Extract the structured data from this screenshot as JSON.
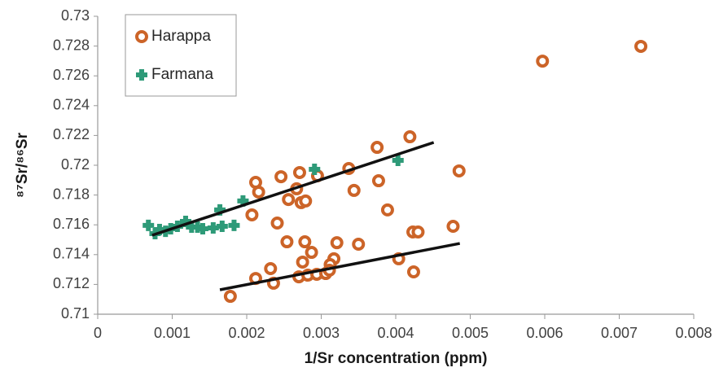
{
  "chart_data": {
    "type": "scatter",
    "x_label": "1/Sr concentration (ppm)",
    "y_label": "⁸⁷Sr/⁸⁶Sr",
    "xlim": [
      0,
      0.008
    ],
    "xticks": [
      0,
      0.001,
      0.002,
      0.003,
      0.004,
      0.005,
      0.006,
      0.007,
      0.008
    ],
    "ylim": [
      0.71,
      0.73
    ],
    "yticks": [
      0.71,
      0.712,
      0.714,
      0.716,
      0.718,
      0.72,
      0.722,
      0.724,
      0.726,
      0.728,
      0.73
    ],
    "grid": false,
    "legend": "top-left",
    "series": [
      {
        "name": "Harappa",
        "color": "#cc6428",
        "marker": "ring",
        "x": [
          0.00729,
          0.00597,
          0.00419,
          0.00375,
          0.00485,
          0.00337,
          0.00377,
          0.00344,
          0.00212,
          0.00246,
          0.00271,
          0.00295,
          0.00216,
          0.00256,
          0.00267,
          0.00273,
          0.00279,
          0.00207,
          0.00389,
          0.00241,
          0.00477,
          0.00423,
          0.0043,
          0.00254,
          0.00278,
          0.00321,
          0.0035,
          0.00287,
          0.00275,
          0.00317,
          0.00312,
          0.00404,
          0.00232,
          0.00212,
          0.00236,
          0.0027,
          0.00282,
          0.00294,
          0.00306,
          0.00311,
          0.00424,
          0.00178
        ],
        "values": [
          0.72798,
          0.72699,
          0.72191,
          0.7212,
          0.71962,
          0.71978,
          0.71896,
          0.71831,
          0.71885,
          0.71923,
          0.71951,
          0.71929,
          0.7182,
          0.7177,
          0.71842,
          0.71749,
          0.7176,
          0.71667,
          0.717,
          0.71612,
          0.7159,
          0.71552,
          0.71552,
          0.71486,
          0.71486,
          0.7148,
          0.7147,
          0.71415,
          0.7135,
          0.71372,
          0.71333,
          0.71372,
          0.71306,
          0.7124,
          0.71208,
          0.71251,
          0.71262,
          0.71268,
          0.71273,
          0.71295,
          0.71284,
          0.7112
        ]
      },
      {
        "name": "Farmana",
        "color": "#2e9a78",
        "marker": "plus",
        "x": [
          0.00068,
          0.00077,
          0.00083,
          0.00091,
          0.00098,
          0.00107,
          0.00118,
          0.00126,
          0.00134,
          0.00141,
          0.00155,
          0.00164,
          0.00167,
          0.00183,
          0.00195,
          0.00291,
          0.00403
        ],
        "values": [
          0.71596,
          0.71541,
          0.71568,
          0.71557,
          0.71574,
          0.7159,
          0.71623,
          0.71585,
          0.71585,
          0.71574,
          0.71579,
          0.717,
          0.7159,
          0.71596,
          0.7176,
          0.71973,
          0.72033
        ]
      }
    ],
    "trend_lines": [
      {
        "color": "#111111",
        "x": [
          0.00073,
          0.00451
        ],
        "y": [
          0.7153,
          0.72153
        ]
      },
      {
        "color": "#111111",
        "x": [
          0.00164,
          0.00486
        ],
        "y": [
          0.71164,
          0.71475
        ]
      }
    ]
  }
}
